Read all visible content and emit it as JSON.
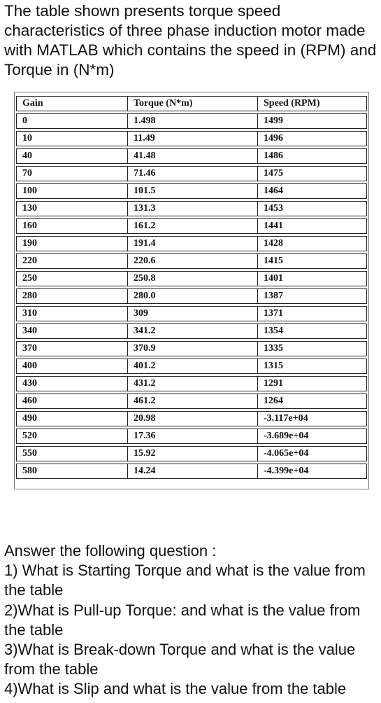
{
  "intro": "The table shown presents torque speed characteristics of three phase induction motor made with MATLAB which contains the speed in (RPM) and Torque in (N*m)",
  "table": {
    "headers": [
      "Gain",
      "Torque (N*m)",
      "Speed (RPM)"
    ],
    "rows": [
      [
        "0",
        "1.498",
        "1499"
      ],
      [
        "10",
        "11.49",
        "1496"
      ],
      [
        "40",
        "41.48",
        "1486"
      ],
      [
        "70",
        "71.46",
        "1475"
      ],
      [
        "100",
        "101.5",
        "1464"
      ],
      [
        "130",
        "131.3",
        "1453"
      ],
      [
        "160",
        "161.2",
        "1441"
      ],
      [
        "190",
        "191.4",
        "1428"
      ],
      [
        "220",
        "220.6",
        "1415"
      ],
      [
        "250",
        "250.8",
        "1401"
      ],
      [
        "280",
        "280.0",
        "1387"
      ],
      [
        "310",
        "309",
        "1371"
      ],
      [
        "340",
        "341.2",
        "1354"
      ],
      [
        "370",
        "370.9",
        "1335"
      ],
      [
        "400",
        "401.2",
        "1315"
      ],
      [
        "430",
        "431.2",
        "1291"
      ],
      [
        "460",
        "461.2",
        "1264"
      ],
      [
        "490",
        "20.98",
        "-3.117e+04"
      ],
      [
        "520",
        "17.36",
        "-3.689e+04"
      ],
      [
        "550",
        "15.92",
        "-4.065e+04"
      ],
      [
        "580",
        "14.24",
        "-4.399e+04"
      ]
    ]
  },
  "questions": {
    "heading": "Answer the following question :",
    "items": [
      "1) What is Starting Torque and what is the value from the table",
      "2)What is Pull-up Torque: and what is the value from the table",
      "3)What is Break-down Torque and what is the value from the table",
      "4)What is Slip and what is the value from the table"
    ]
  }
}
